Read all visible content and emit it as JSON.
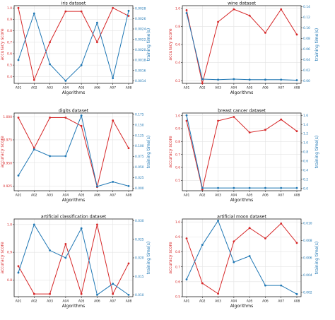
{
  "figure": {
    "left_axis_label": "accuracy score",
    "right_axis_label": "training time(s)",
    "x_axis_label": "Algorithms",
    "accuracy_color": "#d62728",
    "time_color": "#1f77b4"
  },
  "chart_data": [
    {
      "type": "line",
      "title": "iris dataset",
      "categories": [
        "A01",
        "A02",
        "A03",
        "A04",
        "A05",
        "A06",
        "A07",
        "A08"
      ],
      "xlabel": "Algorithms",
      "ylabel": "accuracy score",
      "y2label": "training time(s)",
      "ylim": [
        0.34,
        1.02
      ],
      "yticks": [
        0.4,
        0.5,
        0.6,
        0.7,
        0.8,
        0.9,
        1.0
      ],
      "ytick_labels": [
        "0.4",
        "0.5",
        "0.6",
        "0.7",
        "0.8",
        "0.9",
        "1.0"
      ],
      "y2lim": [
        0.00135,
        0.00285
      ],
      "y2ticks": [
        0.0014,
        0.0016,
        0.0018,
        0.002,
        0.0022,
        0.0024,
        0.0026,
        0.0028
      ],
      "y2tick_labels": [
        "0.0014",
        "0.0016",
        "0.0018",
        "0.0020",
        "0.0022",
        "0.0024",
        "0.0026",
        "0.0028"
      ],
      "grid": true,
      "series": [
        {
          "axis": "left",
          "values": [
            1.0,
            0.37,
            0.7,
            0.97,
            0.97,
            0.7,
            1.0,
            0.93
          ]
        },
        {
          "axis": "right",
          "values": [
            0.0018,
            0.0027,
            0.00172,
            0.0014,
            0.0017,
            0.00252,
            0.00145,
            0.00275
          ]
        }
      ]
    },
    {
      "type": "line",
      "title": "wine dataset",
      "categories": [
        "A01",
        "A02",
        "A03",
        "A04",
        "A05",
        "A06",
        "A07",
        "A08"
      ],
      "xlabel": "Algorithms",
      "ylabel": "accuracy score",
      "y2label": "training time(s)",
      "ylim": [
        0.17,
        1.03
      ],
      "yticks": [
        0.2,
        0.4,
        0.6,
        0.8,
        1.0
      ],
      "ytick_labels": [
        "0.2",
        "0.4",
        "0.6",
        "0.8",
        "1.0"
      ],
      "y2lim": [
        -0.005,
        0.142
      ],
      "y2ticks": [
        0.0,
        0.02,
        0.04,
        0.06,
        0.08,
        0.1,
        0.12,
        0.14
      ],
      "y2tick_labels": [
        "0.00",
        "0.02",
        "0.04",
        "0.06",
        "0.08",
        "0.10",
        "0.12",
        "0.14"
      ],
      "grid": true,
      "series": [
        {
          "axis": "left",
          "values": [
            0.98,
            0.17,
            0.85,
            0.99,
            0.92,
            0.73,
            0.99,
            0.71
          ]
        },
        {
          "axis": "right",
          "values": [
            0.128,
            0.003,
            0.002,
            0.003,
            0.002,
            0.002,
            0.002,
            0.001
          ]
        }
      ]
    },
    {
      "type": "line",
      "title": "digits dataset",
      "categories": [
        "A01",
        "A02",
        "A03",
        "A04",
        "A05",
        "A06",
        "A07",
        "A08"
      ],
      "xlabel": "Algorithms",
      "ylabel": "accuracy score",
      "y2label": "training time(s)",
      "ylim": [
        0.92,
        1.004
      ],
      "yticks": [
        0.925,
        0.95,
        0.975,
        1.0
      ],
      "ytick_labels": [
        "0.925",
        "0.950",
        "0.975",
        "1.000"
      ],
      "y2lim": [
        -0.006,
        0.178
      ],
      "y2ticks": [
        0.0,
        0.025,
        0.05,
        0.075,
        0.1,
        0.125,
        0.15,
        0.175
      ],
      "y2tick_labels": [
        "0.000",
        "0.025",
        "0.050",
        "0.075",
        "0.100",
        "0.125",
        "0.150",
        "0.175"
      ],
      "grid": true,
      "series": [
        {
          "axis": "left",
          "values": [
            0.999,
            0.966,
            0.999,
            0.999,
            0.99,
            0.924,
            0.996,
            0.966
          ]
        },
        {
          "axis": "right",
          "values": [
            0.03,
            0.092,
            0.076,
            0.076,
            0.172,
            0.004,
            0.015,
            0.005
          ]
        }
      ]
    },
    {
      "type": "line",
      "title": "breast cancer dataset",
      "categories": [
        "A01",
        "A02",
        "A03",
        "A04",
        "A05",
        "A06",
        "A07",
        "A08"
      ],
      "xlabel": "Algorithms",
      "ylabel": "accuracy score",
      "y2label": "training time(s)",
      "ylim": [
        0.42,
        1.02
      ],
      "yticks": [
        0.5,
        0.6,
        0.7,
        0.8,
        0.9,
        1.0
      ],
      "ytick_labels": [
        "0.5",
        "0.6",
        "0.7",
        "0.8",
        "0.9",
        "1.0"
      ],
      "y2lim": [
        -0.05,
        1.65
      ],
      "y2ticks": [
        0.0,
        0.2,
        0.4,
        0.6,
        0.8,
        1.0,
        1.2,
        1.4,
        1.6
      ],
      "y2tick_labels": [
        "0.0",
        "0.2",
        "0.4",
        "0.6",
        "0.8",
        "1.0",
        "1.2",
        "1.4",
        "1.6"
      ],
      "grid": true,
      "series": [
        {
          "axis": "left",
          "values": [
            0.96,
            0.43,
            0.96,
            0.99,
            0.87,
            0.89,
            0.97,
            0.88
          ]
        },
        {
          "axis": "right",
          "values": [
            1.6,
            0.01,
            0.01,
            0.01,
            0.01,
            0.01,
            0.01,
            0.01
          ]
        }
      ]
    },
    {
      "type": "line",
      "title": "artificial classification dataset",
      "categories": [
        "A01",
        "A02",
        "A03",
        "A04",
        "A05",
        "A06",
        "A07",
        "A08"
      ],
      "xlabel": "Algorithms",
      "ylabel": "accuracy score",
      "y2label": "training time(s)",
      "ylim": [
        0.74,
        1.02
      ],
      "yticks": [
        0.8,
        0.9,
        1.0
      ],
      "ytick_labels": [
        "0.8",
        "0.9",
        "1.0"
      ],
      "y2lim": [
        0.0095,
        0.0305
      ],
      "y2ticks": [
        0.01,
        0.015,
        0.02,
        0.025,
        0.03
      ],
      "y2tick_labels": [
        "0.010",
        "0.015",
        "0.020",
        "0.025",
        "0.030"
      ],
      "grid": true,
      "series": [
        {
          "axis": "left",
          "values": [
            0.85,
            0.75,
            0.75,
            0.93,
            0.75,
            1.0,
            0.75,
            0.86
          ]
        },
        {
          "axis": "right",
          "values": [
            0.016,
            0.029,
            0.022,
            0.02,
            0.028,
            0.01,
            0.013,
            0.01
          ]
        }
      ]
    },
    {
      "type": "line",
      "title": "artificial moon dataset",
      "categories": [
        "A01",
        "A02",
        "A03",
        "A04",
        "A05",
        "A06",
        "A07",
        "A08"
      ],
      "xlabel": "Algorithms",
      "ylabel": "accuracy score",
      "y2label": "training time(s)",
      "ylim": [
        0.5,
        1.02
      ],
      "yticks": [
        0.5,
        0.6,
        0.7,
        0.8,
        0.9,
        1.0
      ],
      "ytick_labels": [
        "0.5",
        "0.6",
        "0.7",
        "0.8",
        "0.9",
        "1.0"
      ],
      "y2lim": [
        0.0015,
        0.0105
      ],
      "y2ticks": [
        0.002,
        0.004,
        0.006,
        0.008,
        0.01
      ],
      "y2tick_labels": [
        "0.002",
        "0.004",
        "0.006",
        "0.008",
        "0.010"
      ],
      "grid": true,
      "series": [
        {
          "axis": "left",
          "values": [
            0.89,
            0.59,
            0.52,
            0.87,
            0.96,
            0.89,
            0.99,
            0.86
          ]
        },
        {
          "axis": "right",
          "values": [
            0.0035,
            0.0075,
            0.0103,
            0.0055,
            0.0062,
            0.0028,
            0.0028,
            0.0018
          ]
        }
      ]
    }
  ]
}
